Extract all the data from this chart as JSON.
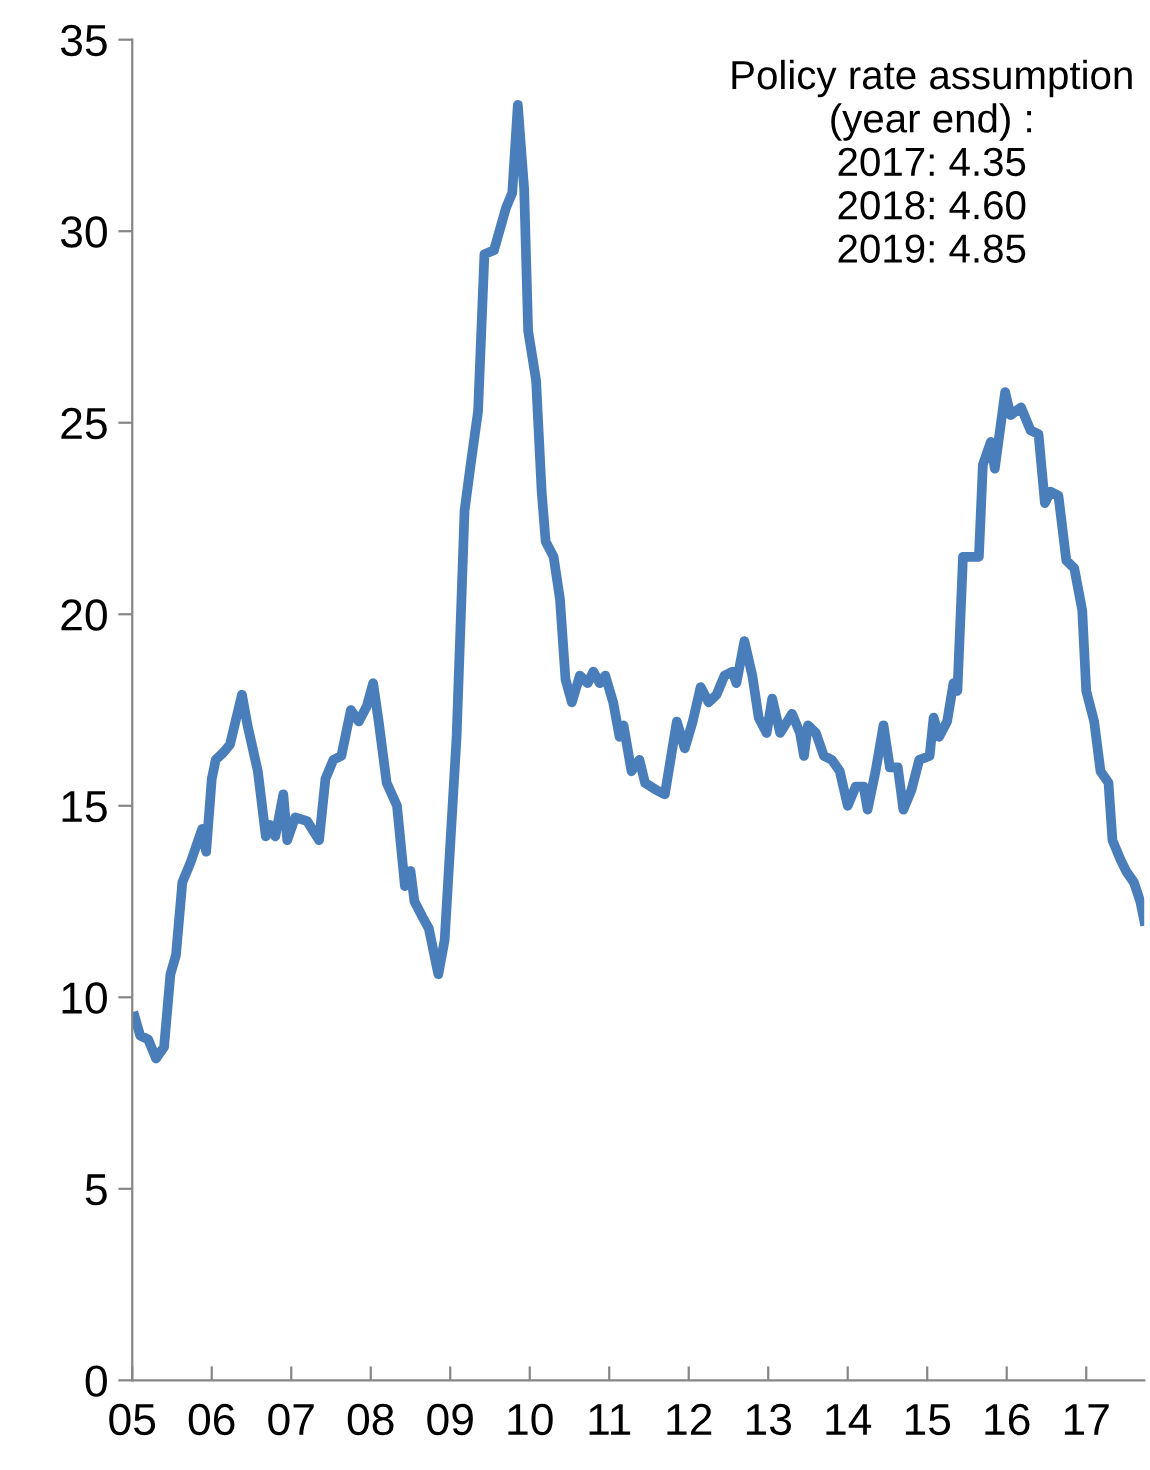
{
  "chart_data": {
    "type": "line",
    "x": [
      2005.03,
      2005.1,
      2005.2,
      2005.3,
      2005.4,
      2005.48,
      2005.55,
      2005.63,
      2005.73,
      2005.83,
      2005.88,
      2005.93,
      2006.0,
      2006.05,
      2006.15,
      2006.23,
      2006.38,
      2006.45,
      2006.58,
      2006.68,
      2006.73,
      2006.8,
      2006.9,
      2006.95,
      2007.05,
      2007.2,
      2007.35,
      2007.43,
      2007.53,
      2007.63,
      2007.75,
      2007.85,
      2007.95,
      2008.03,
      2008.1,
      2008.2,
      2008.33,
      2008.43,
      2008.5,
      2008.55,
      2008.65,
      2008.73,
      2008.85,
      2008.93,
      2009.08,
      2009.18,
      2009.25,
      2009.35,
      2009.43,
      2009.55,
      2009.7,
      2009.78,
      2009.85,
      2009.93,
      2009.98,
      2010.08,
      2010.15,
      2010.2,
      2010.3,
      2010.38,
      2010.45,
      2010.53,
      2010.63,
      2010.73,
      2010.8,
      2010.88,
      2010.95,
      2011.05,
      2011.13,
      2011.18,
      2011.28,
      2011.38,
      2011.45,
      2011.6,
      2011.7,
      2011.85,
      2011.95,
      2012.05,
      2012.15,
      2012.25,
      2012.35,
      2012.45,
      2012.55,
      2012.6,
      2012.7,
      2012.8,
      2012.88,
      2012.98,
      2013.05,
      2013.15,
      2013.3,
      2013.4,
      2013.45,
      2013.5,
      2013.6,
      2013.7,
      2013.8,
      2013.9,
      2014.0,
      2014.1,
      2014.2,
      2014.25,
      2014.35,
      2014.45,
      2014.53,
      2014.63,
      2014.7,
      2014.8,
      2014.9,
      2015.03,
      2015.08,
      2015.15,
      2015.25,
      2015.33,
      2015.38,
      2015.45,
      2015.65,
      2015.7,
      2015.8,
      2015.85,
      2015.98,
      2016.05,
      2016.18,
      2016.3,
      2016.4,
      2016.48,
      2016.55,
      2016.65,
      2016.75,
      2016.85,
      2016.95,
      2017.0,
      2017.1,
      2017.18,
      2017.28,
      2017.33,
      2017.43,
      2017.5,
      2017.6,
      2017.68,
      2017.73
    ],
    "series": [
      {
        "color": "#4a7ebb",
        "values": [
          9.5,
          9.0,
          8.9,
          8.4,
          8.7,
          10.6,
          11.1,
          13.0,
          13.5,
          14.1,
          14.4,
          13.8,
          15.7,
          16.2,
          16.4,
          16.6,
          17.9,
          17.1,
          15.9,
          14.2,
          14.5,
          14.2,
          15.3,
          14.1,
          14.7,
          14.6,
          14.1,
          15.7,
          16.2,
          16.3,
          17.5,
          17.2,
          17.6,
          18.2,
          17.2,
          15.6,
          15.0,
          12.9,
          13.3,
          12.5,
          12.1,
          11.8,
          10.6,
          11.5,
          16.8,
          22.7,
          23.8,
          25.3,
          29.4,
          29.5,
          30.6,
          31.0,
          33.3,
          31.1,
          27.4,
          26.1,
          23.2,
          21.9,
          21.5,
          20.4,
          18.3,
          17.7,
          18.4,
          18.2,
          18.5,
          18.2,
          18.4,
          17.7,
          16.8,
          17.1,
          15.9,
          16.2,
          15.6,
          15.4,
          15.3,
          17.2,
          16.5,
          17.2,
          18.1,
          17.7,
          17.9,
          18.4,
          18.5,
          18.2,
          19.3,
          18.4,
          17.3,
          16.9,
          17.8,
          16.9,
          17.4,
          16.9,
          16.3,
          17.1,
          16.9,
          16.3,
          16.2,
          15.9,
          15.0,
          15.5,
          15.5,
          14.9,
          15.9,
          17.1,
          16.0,
          16.0,
          14.9,
          15.4,
          16.2,
          16.3,
          17.3,
          16.8,
          17.2,
          18.2,
          18.0,
          21.5,
          21.5,
          23.9,
          24.5,
          23.8,
          25.8,
          25.2,
          25.4,
          24.8,
          24.7,
          22.9,
          23.2,
          23.1,
          21.4,
          21.2,
          20.1,
          18.0,
          17.2,
          15.9,
          15.6,
          14.1,
          13.6,
          13.3,
          13.0,
          12.5,
          12.0
        ]
      }
    ],
    "xlim": [
      2005,
      2017.73
    ],
    "xticks": [
      {
        "value": 2005,
        "label": "05"
      },
      {
        "value": 2006,
        "label": "06"
      },
      {
        "value": 2007,
        "label": "07"
      },
      {
        "value": 2008,
        "label": "08"
      },
      {
        "value": 2009,
        "label": "09"
      },
      {
        "value": 2010,
        "label": "10"
      },
      {
        "value": 2011,
        "label": "11"
      },
      {
        "value": 2012,
        "label": "12"
      },
      {
        "value": 2013,
        "label": "13"
      },
      {
        "value": 2014,
        "label": "14"
      },
      {
        "value": 2015,
        "label": "15"
      },
      {
        "value": 2016,
        "label": "16"
      },
      {
        "value": 2017,
        "label": "17"
      }
    ],
    "ylim": [
      0,
      35
    ],
    "yticks": [
      0,
      5,
      10,
      15,
      20,
      25,
      30,
      35
    ],
    "annotations": [
      "Policy rate assumption\n(year end) :\n2017: 4.35\n2018: 4.60\n2019: 4.85"
    ],
    "grid": false,
    "legend": false,
    "marker": "none",
    "line_style": "solid"
  }
}
